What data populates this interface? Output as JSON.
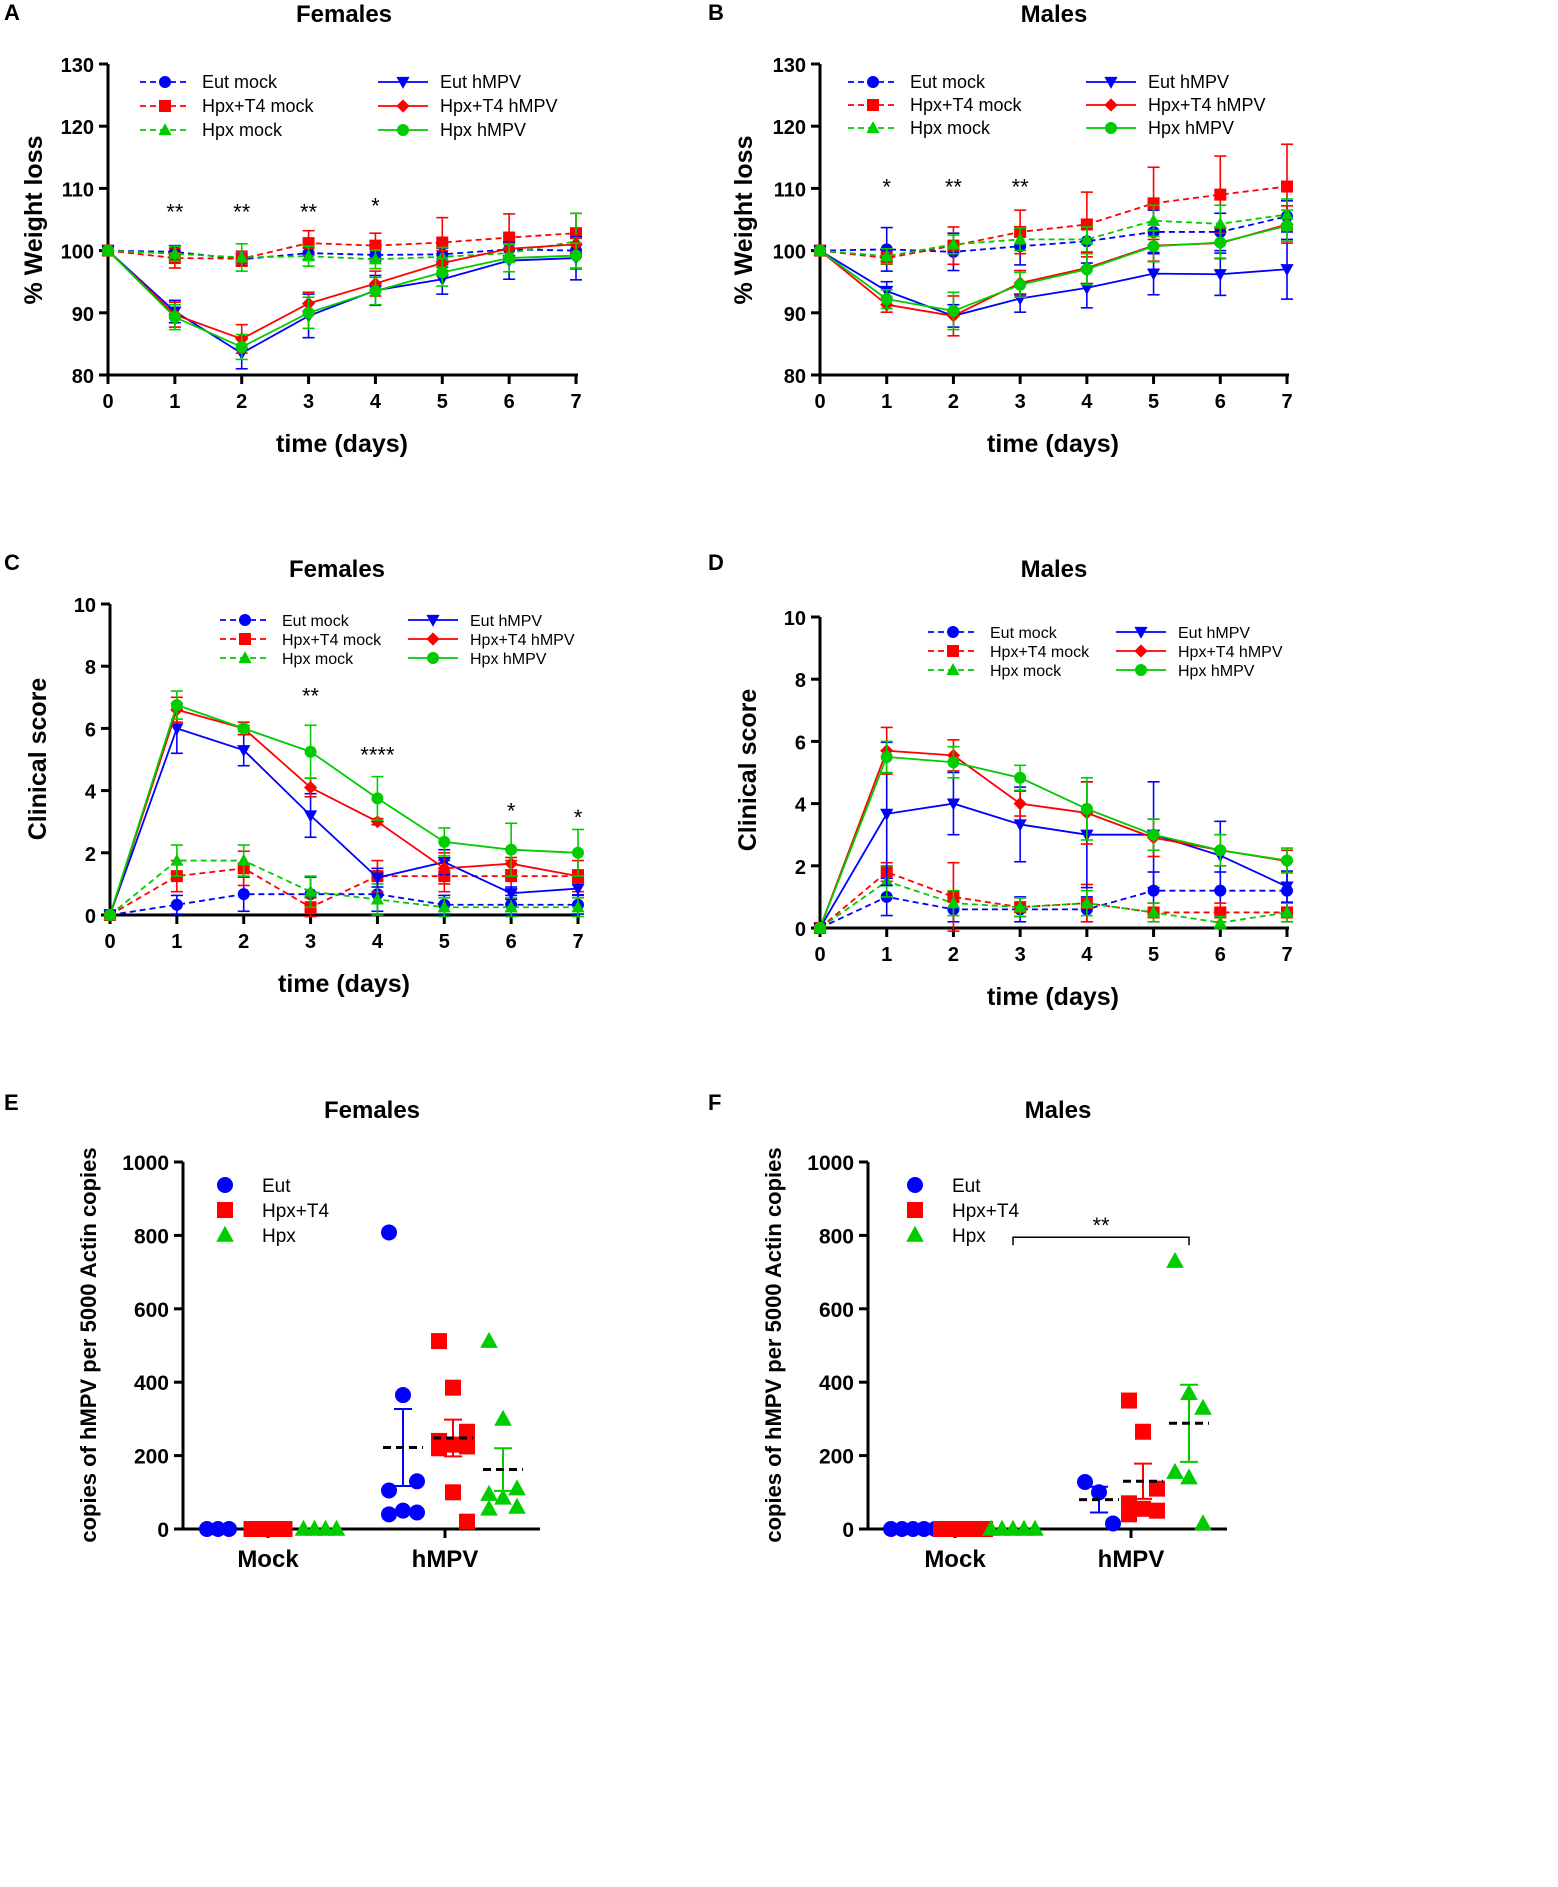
{
  "figure": {
    "panel_letters": [
      "A",
      "B",
      "C",
      "D",
      "E",
      "F"
    ],
    "colors": {
      "eut": "#0000ff",
      "hpxt4": "#ff0000",
      "hpx": "#00cc00",
      "axis": "#000000"
    }
  },
  "chart_data": [
    {
      "panel": "A",
      "type": "line",
      "title": "Females",
      "xlabel": "time (days)",
      "ylabel": "% Weight loss",
      "x": [
        0,
        1,
        2,
        3,
        4,
        5,
        6,
        7
      ],
      "xlim": [
        0,
        7
      ],
      "ylim": [
        80,
        130
      ],
      "yticks": [
        80,
        90,
        100,
        110,
        120,
        130
      ],
      "legend_columns": 2,
      "series": [
        {
          "name": "Eut mock",
          "color": "#0000ff",
          "dashed": true,
          "marker": "circle",
          "values": [
            100,
            99.8,
            98.6,
            99.6,
            99.3,
            99.4,
            100.2,
            100
          ],
          "errors": [
            0,
            1.0,
            1.0,
            1.0,
            1.0,
            1.0,
            1.0,
            1.0
          ]
        },
        {
          "name": "Hpx+T4 mock",
          "color": "#ff0000",
          "dashed": true,
          "marker": "square",
          "values": [
            100,
            98.8,
            98.7,
            101.2,
            100.8,
            101.3,
            102.1,
            102.8
          ],
          "errors": [
            0,
            1.6,
            1.2,
            2.0,
            2.0,
            4.0,
            3.8,
            3.2
          ]
        },
        {
          "name": "Hpx mock",
          "color": "#00cc00",
          "dashed": true,
          "marker": "triangle-up",
          "values": [
            100,
            99.5,
            98.9,
            99.1,
            98.6,
            99.0,
            99.6,
            101.5
          ],
          "errors": [
            0,
            1.2,
            2.2,
            1.6,
            1.5,
            1.5,
            1.5,
            4.5
          ]
        },
        {
          "name": "Eut hMPV",
          "color": "#0000ff",
          "dashed": false,
          "marker": "triangle-down",
          "values": [
            100,
            90.2,
            83.5,
            89.5,
            93.6,
            95.4,
            98.4,
            98.8
          ],
          "errors": [
            0,
            1.8,
            2.5,
            3.5,
            2.4,
            2.4,
            3.0,
            3.5
          ]
        },
        {
          "name": "Hpx+T4 hMPV",
          "color": "#ff0000",
          "dashed": false,
          "marker": "diamond",
          "values": [
            100,
            89.7,
            85.8,
            91.5,
            94.7,
            98.0,
            100.3,
            101
          ],
          "errors": [
            0,
            2.0,
            2.3,
            1.8,
            2.0,
            2.0,
            2.0,
            1.5
          ]
        },
        {
          "name": "Hpx hMPV",
          "color": "#00cc00",
          "dashed": false,
          "marker": "circle",
          "values": [
            100,
            89.3,
            84.5,
            90.0,
            93.5,
            96.5,
            98.8,
            99.2
          ],
          "errors": [
            0,
            2.0,
            2.0,
            2.5,
            2.2,
            2.2,
            2.2,
            2.0
          ]
        }
      ],
      "annotations": [
        {
          "x": 1,
          "y": 105,
          "text": "**"
        },
        {
          "x": 2,
          "y": 105,
          "text": "**"
        },
        {
          "x": 3,
          "y": 105,
          "text": "**"
        },
        {
          "x": 4,
          "y": 106,
          "text": "*"
        }
      ]
    },
    {
      "panel": "B",
      "type": "line",
      "title": "Males",
      "xlabel": "time (days)",
      "ylabel": "% Weight loss",
      "x": [
        0,
        1,
        2,
        3,
        4,
        5,
        6,
        7
      ],
      "xlim": [
        0,
        7
      ],
      "ylim": [
        80,
        130
      ],
      "yticks": [
        80,
        90,
        100,
        110,
        120,
        130
      ],
      "legend_columns": 2,
      "series": [
        {
          "name": "Eut mock",
          "color": "#0000ff",
          "dashed": true,
          "marker": "circle",
          "values": [
            100,
            100.2,
            99.8,
            100.7,
            101.5,
            103.0,
            103.0,
            105.5
          ],
          "errors": [
            0,
            3.5,
            3.0,
            3.0,
            3.5,
            3.5,
            3.0,
            2.5
          ]
        },
        {
          "name": "Hpx+T4 mock",
          "color": "#ff0000",
          "dashed": true,
          "marker": "square",
          "values": [
            100,
            98.8,
            100.8,
            103.0,
            104.2,
            107.6,
            109.0,
            110.3
          ],
          "errors": [
            0,
            1.0,
            3.0,
            3.5,
            5.2,
            5.8,
            6.2,
            6.8
          ]
        },
        {
          "name": "Hpx mock",
          "color": "#00cc00",
          "dashed": true,
          "marker": "triangle-up",
          "values": [
            100,
            99.1,
            101.0,
            101.8,
            101.8,
            104.8,
            104.3,
            105.8
          ],
          "errors": [
            0,
            1.2,
            1.5,
            1.8,
            2.0,
            2.5,
            3.0,
            2.5
          ]
        },
        {
          "name": "Eut hMPV",
          "color": "#0000ff",
          "dashed": false,
          "marker": "triangle-down",
          "values": [
            100,
            93.5,
            89.5,
            92.3,
            94.0,
            96.3,
            96.2,
            97.0
          ],
          "errors": [
            0,
            1.5,
            1.8,
            2.2,
            3.2,
            3.4,
            3.4,
            4.8
          ]
        },
        {
          "name": "Hpx+T4 hMPV",
          "color": "#ff0000",
          "dashed": false,
          "marker": "diamond",
          "values": [
            100,
            91.3,
            89.5,
            94.8,
            97.2,
            100.8,
            101.2,
            104.2
          ],
          "errors": [
            0,
            1.2,
            3.2,
            2.0,
            2.5,
            2.5,
            2.5,
            3.0
          ]
        },
        {
          "name": "Hpx hMPV",
          "color": "#00cc00",
          "dashed": false,
          "marker": "circle",
          "values": [
            100,
            92.2,
            90.3,
            94.5,
            97.0,
            100.7,
            101.3,
            104.0
          ],
          "errors": [
            0,
            1.5,
            3.0,
            2.0,
            2.5,
            2.5,
            2.5,
            2.5
          ]
        }
      ],
      "annotations": [
        {
          "x": 1,
          "y": 109,
          "text": "*"
        },
        {
          "x": 2,
          "y": 109,
          "text": "**"
        },
        {
          "x": 3,
          "y": 109,
          "text": "**"
        }
      ]
    },
    {
      "panel": "C",
      "type": "line",
      "title": "Females",
      "xlabel": "time (days)",
      "ylabel": "Clinical score",
      "x": [
        0,
        1,
        2,
        3,
        4,
        5,
        6,
        7
      ],
      "xlim": [
        0,
        7
      ],
      "ylim": [
        0,
        10
      ],
      "yticks": [
        0,
        2,
        4,
        6,
        8,
        10
      ],
      "legend_columns": 2,
      "series": [
        {
          "name": "Eut mock",
          "color": "#0000ff",
          "dashed": true,
          "marker": "circle",
          "values": [
            0,
            0.33,
            0.67,
            0.67,
            0.67,
            0.33,
            0.33,
            0.33
          ],
          "errors": [
            0,
            0.3,
            0.55,
            0.55,
            0.55,
            0.3,
            0.3,
            0.3
          ]
        },
        {
          "name": "Hpx+T4 mock",
          "color": "#ff0000",
          "dashed": true,
          "marker": "square",
          "values": [
            0,
            1.25,
            1.5,
            0.25,
            1.25,
            1.25,
            1.25,
            1.25
          ],
          "errors": [
            0,
            0.5,
            0.55,
            0.3,
            0.5,
            0.5,
            0.5,
            0.5
          ]
        },
        {
          "name": "Hpx mock",
          "color": "#00cc00",
          "dashed": true,
          "marker": "triangle-up",
          "values": [
            0,
            1.75,
            1.75,
            0.75,
            0.5,
            0.25,
            0.25,
            0.25
          ],
          "errors": [
            0,
            0.5,
            0.5,
            0.5,
            0.5,
            0.3,
            0.3,
            0.3
          ]
        },
        {
          "name": "Eut hMPV",
          "color": "#0000ff",
          "dashed": false,
          "marker": "triangle-down",
          "values": [
            0,
            6.0,
            5.3,
            3.2,
            1.2,
            1.7,
            0.7,
            0.85
          ],
          "errors": [
            0,
            0.8,
            0.5,
            0.7,
            0.3,
            0.4,
            0.2,
            0.2
          ]
        },
        {
          "name": "Hpx+T4 hMPV",
          "color": "#ff0000",
          "dashed": false,
          "marker": "diamond",
          "values": [
            0,
            6.6,
            6.0,
            4.1,
            3.0,
            1.5,
            1.65,
            1.25
          ],
          "errors": [
            0,
            0.4,
            0.2,
            0.3,
            0.1,
            0.5,
            0.2,
            0.2
          ]
        },
        {
          "name": "Hpx hMPV",
          "color": "#00cc00",
          "dashed": false,
          "marker": "circle",
          "values": [
            0,
            6.75,
            6.0,
            5.25,
            3.75,
            2.35,
            2.1,
            2.0
          ],
          "errors": [
            0,
            0.45,
            0.1,
            0.85,
            0.7,
            0.45,
            0.85,
            0.75
          ]
        }
      ],
      "annotations": [
        {
          "x": 3,
          "y": 6.8,
          "text": "**"
        },
        {
          "x": 4,
          "y": 4.9,
          "text": "****"
        },
        {
          "x": 6,
          "y": 3.1,
          "text": "*"
        },
        {
          "x": 7,
          "y": 2.9,
          "text": "*"
        }
      ]
    },
    {
      "panel": "D",
      "type": "line",
      "title": "Males",
      "xlabel": "time (days)",
      "ylabel": "Clinical score",
      "x": [
        0,
        1,
        2,
        3,
        4,
        5,
        6,
        7
      ],
      "xlim": [
        0,
        7
      ],
      "ylim": [
        0,
        10
      ],
      "yticks": [
        0,
        2,
        4,
        6,
        8,
        10
      ],
      "legend_columns": 2,
      "series": [
        {
          "name": "Eut mock",
          "color": "#0000ff",
          "dashed": true,
          "marker": "circle",
          "values": [
            0,
            1.0,
            0.6,
            0.6,
            0.6,
            1.2,
            1.2,
            1.2
          ],
          "errors": [
            0,
            0.6,
            0.4,
            0.4,
            0.4,
            0.6,
            0.6,
            0.6
          ]
        },
        {
          "name": "Hpx+T4 mock",
          "color": "#ff0000",
          "dashed": true,
          "marker": "square",
          "values": [
            0,
            1.8,
            1.0,
            0.67,
            0.8,
            0.5,
            0.5,
            0.5
          ],
          "errors": [
            0,
            0.3,
            1.1,
            0.3,
            0.6,
            0.3,
            0.3,
            0.3
          ]
        },
        {
          "name": "Hpx mock",
          "color": "#00cc00",
          "dashed": true,
          "marker": "triangle-up",
          "values": [
            0,
            1.5,
            0.8,
            0.67,
            0.8,
            0.5,
            0.17,
            0.5
          ],
          "errors": [
            0,
            0.5,
            0.4,
            0.3,
            0.4,
            0.3,
            0.2,
            0.3
          ]
        },
        {
          "name": "Eut hMPV",
          "color": "#0000ff",
          "dashed": false,
          "marker": "triangle-down",
          "values": [
            0,
            3.67,
            4.0,
            3.33,
            3.0,
            3.0,
            2.33,
            1.33
          ],
          "errors": [
            0,
            2.3,
            1.0,
            1.2,
            1.7,
            1.7,
            1.1,
            0.5
          ]
        },
        {
          "name": "Hpx+T4 hMPV",
          "color": "#ff0000",
          "dashed": false,
          "marker": "diamond",
          "values": [
            0,
            5.7,
            5.55,
            4.0,
            3.7,
            2.9,
            2.5,
            2.15
          ],
          "errors": [
            0,
            0.75,
            0.5,
            0.4,
            1.0,
            0.6,
            0.5,
            0.35
          ]
        },
        {
          "name": "Hpx hMPV",
          "color": "#00cc00",
          "dashed": false,
          "marker": "circle",
          "values": [
            0,
            5.5,
            5.33,
            4.83,
            3.83,
            3.0,
            2.5,
            2.17
          ],
          "errors": [
            0,
            0.5,
            0.5,
            0.4,
            1.0,
            0.5,
            0.5,
            0.4
          ]
        }
      ],
      "annotations": []
    },
    {
      "panel": "E",
      "type": "scatter",
      "title": "Females",
      "ylabel": "copies of hMPV per 5000 Actin copies",
      "groups": [
        "Mock",
        "hMPV"
      ],
      "ylim": [
        0,
        1000
      ],
      "yticks": [
        0,
        200,
        400,
        600,
        800,
        1000
      ],
      "series": [
        {
          "name": "Eut",
          "color": "#0000ff",
          "marker": "circle",
          "points": [
            {
              "group": "Mock",
              "values": [
                0,
                0,
                0
              ]
            },
            {
              "group": "hMPV",
              "values": [
                808,
                365,
                130,
                105,
                50,
                45,
                40
              ],
              "mean": 222,
              "error": 105
            }
          ]
        },
        {
          "name": "Hpx+T4",
          "color": "#ff0000",
          "marker": "square",
          "points": [
            {
              "group": "Mock",
              "values": [
                0,
                0,
                0,
                0
              ]
            },
            {
              "group": "hMPV",
              "values": [
                512,
                385,
                265,
                240,
                230,
                225,
                220,
                100,
                20
              ],
              "mean": 248,
              "error": 50
            }
          ]
        },
        {
          "name": "Hpx",
          "color": "#00cc00",
          "marker": "triangle",
          "points": [
            {
              "group": "Mock",
              "values": [
                0,
                0,
                0,
                0
              ]
            },
            {
              "group": "hMPV",
              "values": [
                512,
                300,
                110,
                95,
                85,
                60,
                55
              ],
              "mean": 162,
              "error": 58
            }
          ]
        }
      ],
      "brackets": []
    },
    {
      "panel": "F",
      "type": "scatter",
      "title": "Males",
      "ylabel": "copies of hMPV per 5000 Actin copies",
      "groups": [
        "Mock",
        "hMPV"
      ],
      "ylim": [
        0,
        1000
      ],
      "yticks": [
        0,
        200,
        400,
        600,
        800,
        1000
      ],
      "series": [
        {
          "name": "Eut",
          "color": "#0000ff",
          "marker": "circle",
          "points": [
            {
              "group": "Mock",
              "values": [
                0,
                0,
                0,
                0,
                0
              ]
            },
            {
              "group": "hMPV",
              "values": [
                128,
                100,
                15
              ],
              "mean": 80,
              "error": 35
            }
          ]
        },
        {
          "name": "Hpx+T4",
          "color": "#ff0000",
          "marker": "square",
          "points": [
            {
              "group": "Mock",
              "values": [
                0,
                0,
                0,
                0,
                0
              ]
            },
            {
              "group": "hMPV",
              "values": [
                350,
                265,
                110,
                70,
                55,
                50,
                40
              ],
              "mean": 130,
              "error": 48
            }
          ]
        },
        {
          "name": "Hpx",
          "color": "#00cc00",
          "marker": "triangle",
          "points": [
            {
              "group": "Mock",
              "values": [
                0,
                0,
                0,
                0,
                0
              ]
            },
            {
              "group": "hMPV",
              "values": [
                730,
                370,
                330,
                155,
                140,
                15
              ],
              "mean": 288,
              "error": 105
            }
          ]
        }
      ],
      "brackets": [
        {
          "from": "Mock",
          "to": "hMPV",
          "series": "Hpx",
          "y": 795,
          "text": "**"
        }
      ]
    }
  ]
}
